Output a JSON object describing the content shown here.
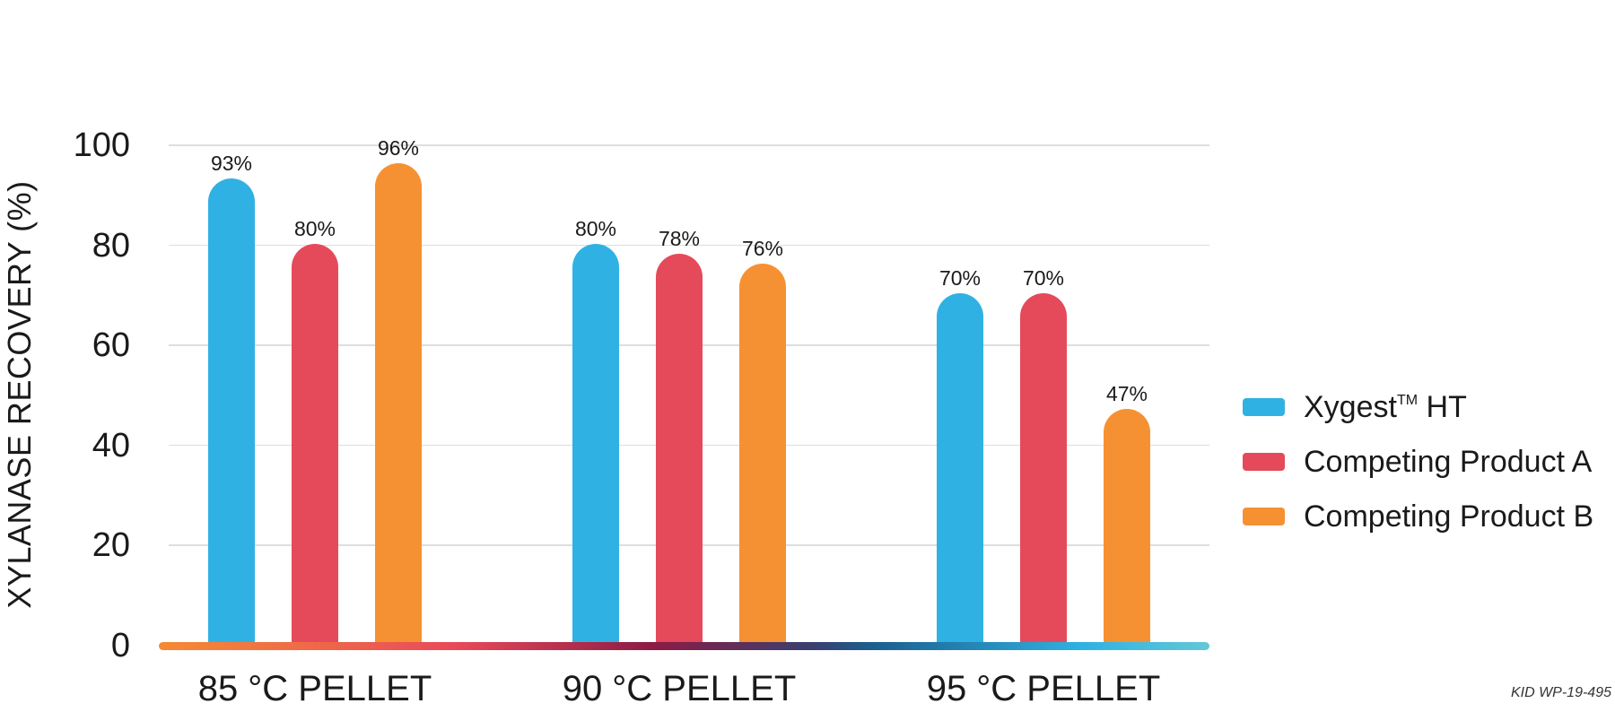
{
  "chart_data": {
    "type": "bar",
    "title": "",
    "xlabel": "",
    "ylabel": "XYLANASE RECOVERY (%)",
    "ylim": [
      0,
      100
    ],
    "yticks": [
      0,
      20,
      40,
      60,
      80,
      100
    ],
    "grid": true,
    "legend_position": "right",
    "categories": [
      "85 °C PELLET",
      "90 °C PELLET",
      "95 °C PELLET"
    ],
    "series": [
      {
        "name": "Xygest™ HT",
        "color": "#2fb2e3",
        "values": [
          93,
          80,
          70
        ],
        "labels": [
          "93%",
          "80%",
          "70%"
        ]
      },
      {
        "name": "Competing Product A",
        "color": "#e54a5a",
        "values": [
          80,
          78,
          70
        ],
        "labels": [
          "80%",
          "78%",
          "70%"
        ]
      },
      {
        "name": "Competing Product B",
        "color": "#f69133",
        "values": [
          96,
          76,
          47
        ],
        "labels": [
          "96%",
          "76%",
          "47%"
        ]
      }
    ]
  },
  "axis": {
    "ylabel": "XYLANASE RECOVERY (%)",
    "ticks": [
      "0",
      "20",
      "40",
      "60",
      "80",
      "100"
    ]
  },
  "legend": {
    "items": [
      {
        "label": "Xygest",
        "sup": "TM",
        "suffix": " HT",
        "color": "#2fb2e3"
      },
      {
        "label": "Competing Product A",
        "sup": "",
        "suffix": "",
        "color": "#e54a5a"
      },
      {
        "label": "Competing Product B",
        "sup": "",
        "suffix": "",
        "color": "#f69133"
      }
    ]
  },
  "footnote": "KID WP-19-495"
}
